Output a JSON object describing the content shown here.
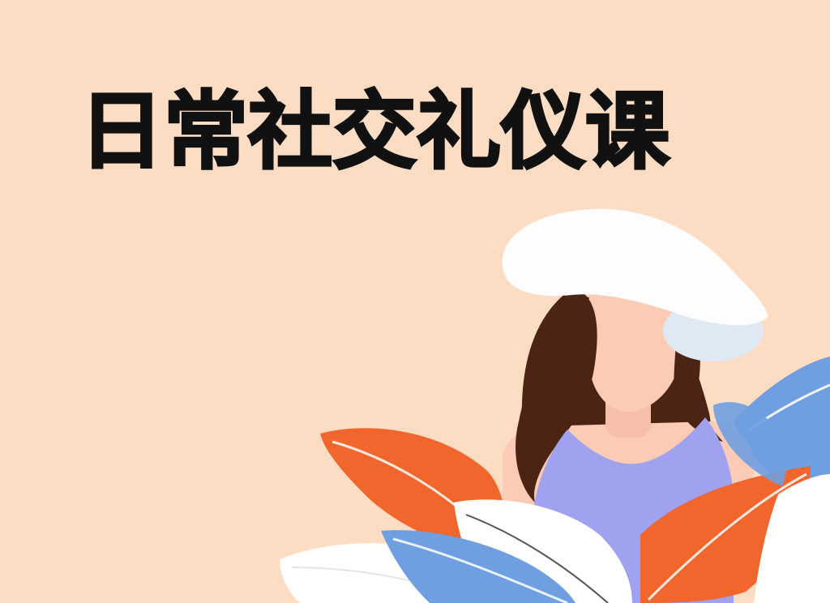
{
  "title": "日常社交礼仪课",
  "colors": {
    "background": "#fcdcc3",
    "title_text": "#111111",
    "hat": "#fdfdfd",
    "hat_shadow": "#dfe9f3",
    "skin": "#fbcbb6",
    "hair": "#4b2414",
    "top": "#9fa2ef",
    "leaf_orange": "#f0662c",
    "leaf_blue": "#6f9fe0",
    "leaf_white": "#ffffff"
  },
  "illustration": {
    "subject": "woman-with-white-hat",
    "icons": [
      "hat-icon",
      "leaf-icon"
    ]
  }
}
